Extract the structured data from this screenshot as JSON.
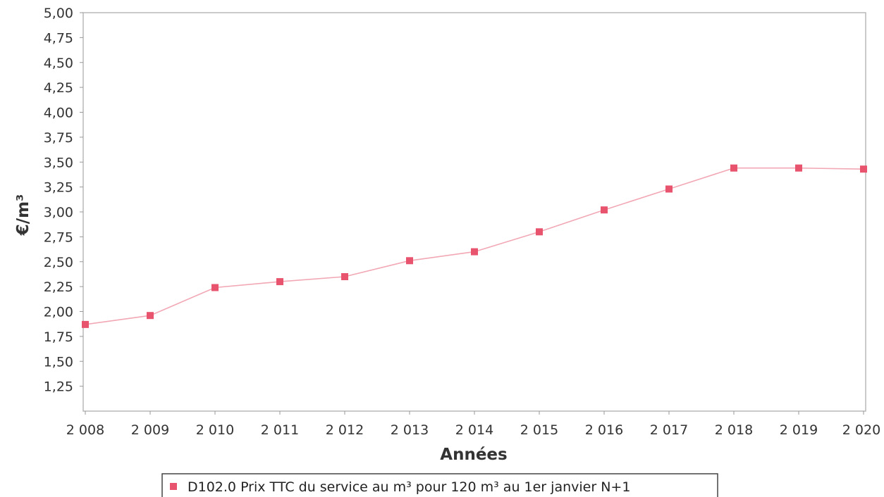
{
  "chart_data": {
    "type": "line",
    "title": "",
    "xlabel": "Années",
    "ylabel": "€/m³",
    "categories": [
      "2 008",
      "2 009",
      "2 010",
      "2 011",
      "2 012",
      "2 013",
      "2 014",
      "2 015",
      "2 016",
      "2 017",
      "2 018",
      "2 019",
      "2 020"
    ],
    "y_ticks": [
      "5,00",
      "4,75",
      "4,50",
      "4,25",
      "4,00",
      "3,75",
      "3,50",
      "3,25",
      "3,00",
      "2,75",
      "2,50",
      "2,25",
      "2,00",
      "1,75",
      "1,50",
      "1,25"
    ],
    "ylim": [
      1.0,
      5.0
    ],
    "grid": false,
    "legend_position": "bottom",
    "series": [
      {
        "name": "D102.0 Prix TTC du service au m³ pour 120 m³ au 1er janvier N+1",
        "color": "#e8546e",
        "line_color": "#f2a7b4",
        "values": [
          1.87,
          1.96,
          2.24,
          2.3,
          2.35,
          2.51,
          2.6,
          2.8,
          3.02,
          3.23,
          3.44,
          3.44,
          3.43
        ]
      }
    ]
  }
}
